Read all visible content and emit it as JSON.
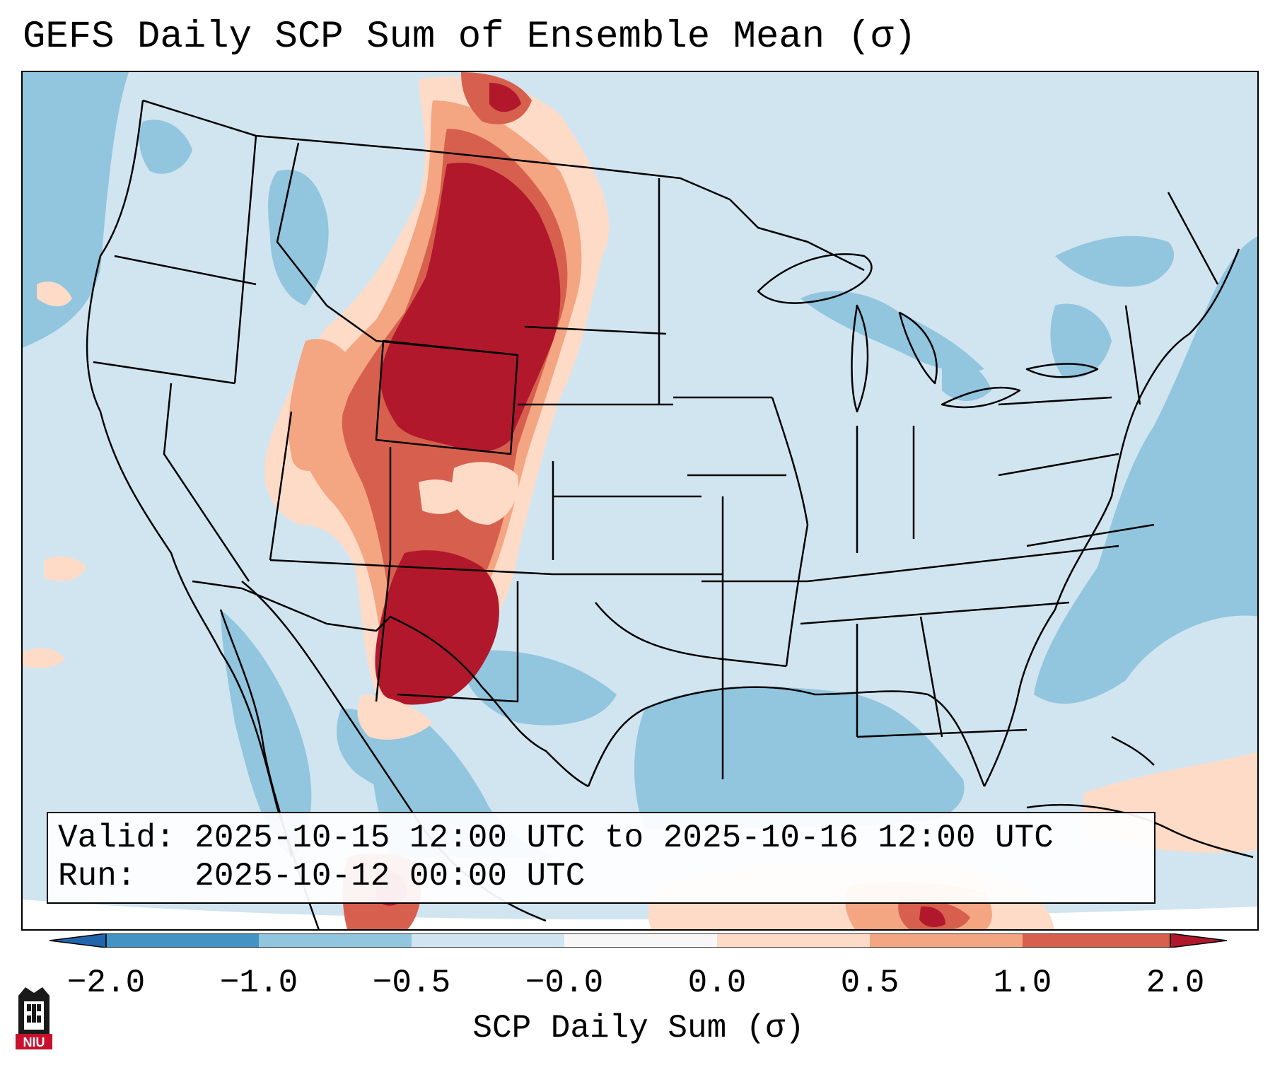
{
  "title": "GEFS Daily SCP Sum of Ensemble Mean (σ)",
  "info": {
    "valid_label": "Valid:",
    "valid_value": "2025-10-15 12:00 UTC to 2025-10-16 12:00 UTC",
    "run_label": "Run:",
    "run_value": "2025-10-12 00:00 UTC"
  },
  "colorbar": {
    "label": "SCP Daily Sum (σ)",
    "ticks": [
      "−2.0",
      "−1.0",
      "−0.5",
      "−0.0",
      "0.0",
      "0.5",
      "1.0",
      "2.0"
    ],
    "bins": [
      {
        "range": "< -2.0",
        "color": "#2166ac"
      },
      {
        "range": "-2.0 to -1.0",
        "color": "#4393c3"
      },
      {
        "range": "-1.0 to -0.5",
        "color": "#92c5de"
      },
      {
        "range": "-0.5 to -0.0",
        "color": "#d1e5f0"
      },
      {
        "range": "-0.0 to 0.0",
        "color": "#f7f7f7"
      },
      {
        "range": "0.0 to 0.5",
        "color": "#fddbc7"
      },
      {
        "range": "0.5 to 1.0",
        "color": "#f4a582"
      },
      {
        "range": "1.0 to 2.0",
        "color": "#d6604d"
      },
      {
        "range": "> 2.0",
        "color": "#b2182b"
      }
    ]
  },
  "logo": {
    "text": "NIU",
    "color": "#c8102e"
  },
  "colors": {
    "ocean": "#92c5de",
    "land": "#d1e5f0",
    "low_positive": "#fddbc7",
    "mid_positive": "#f4a582",
    "high_positive": "#d6604d",
    "max_positive": "#b2182b"
  }
}
